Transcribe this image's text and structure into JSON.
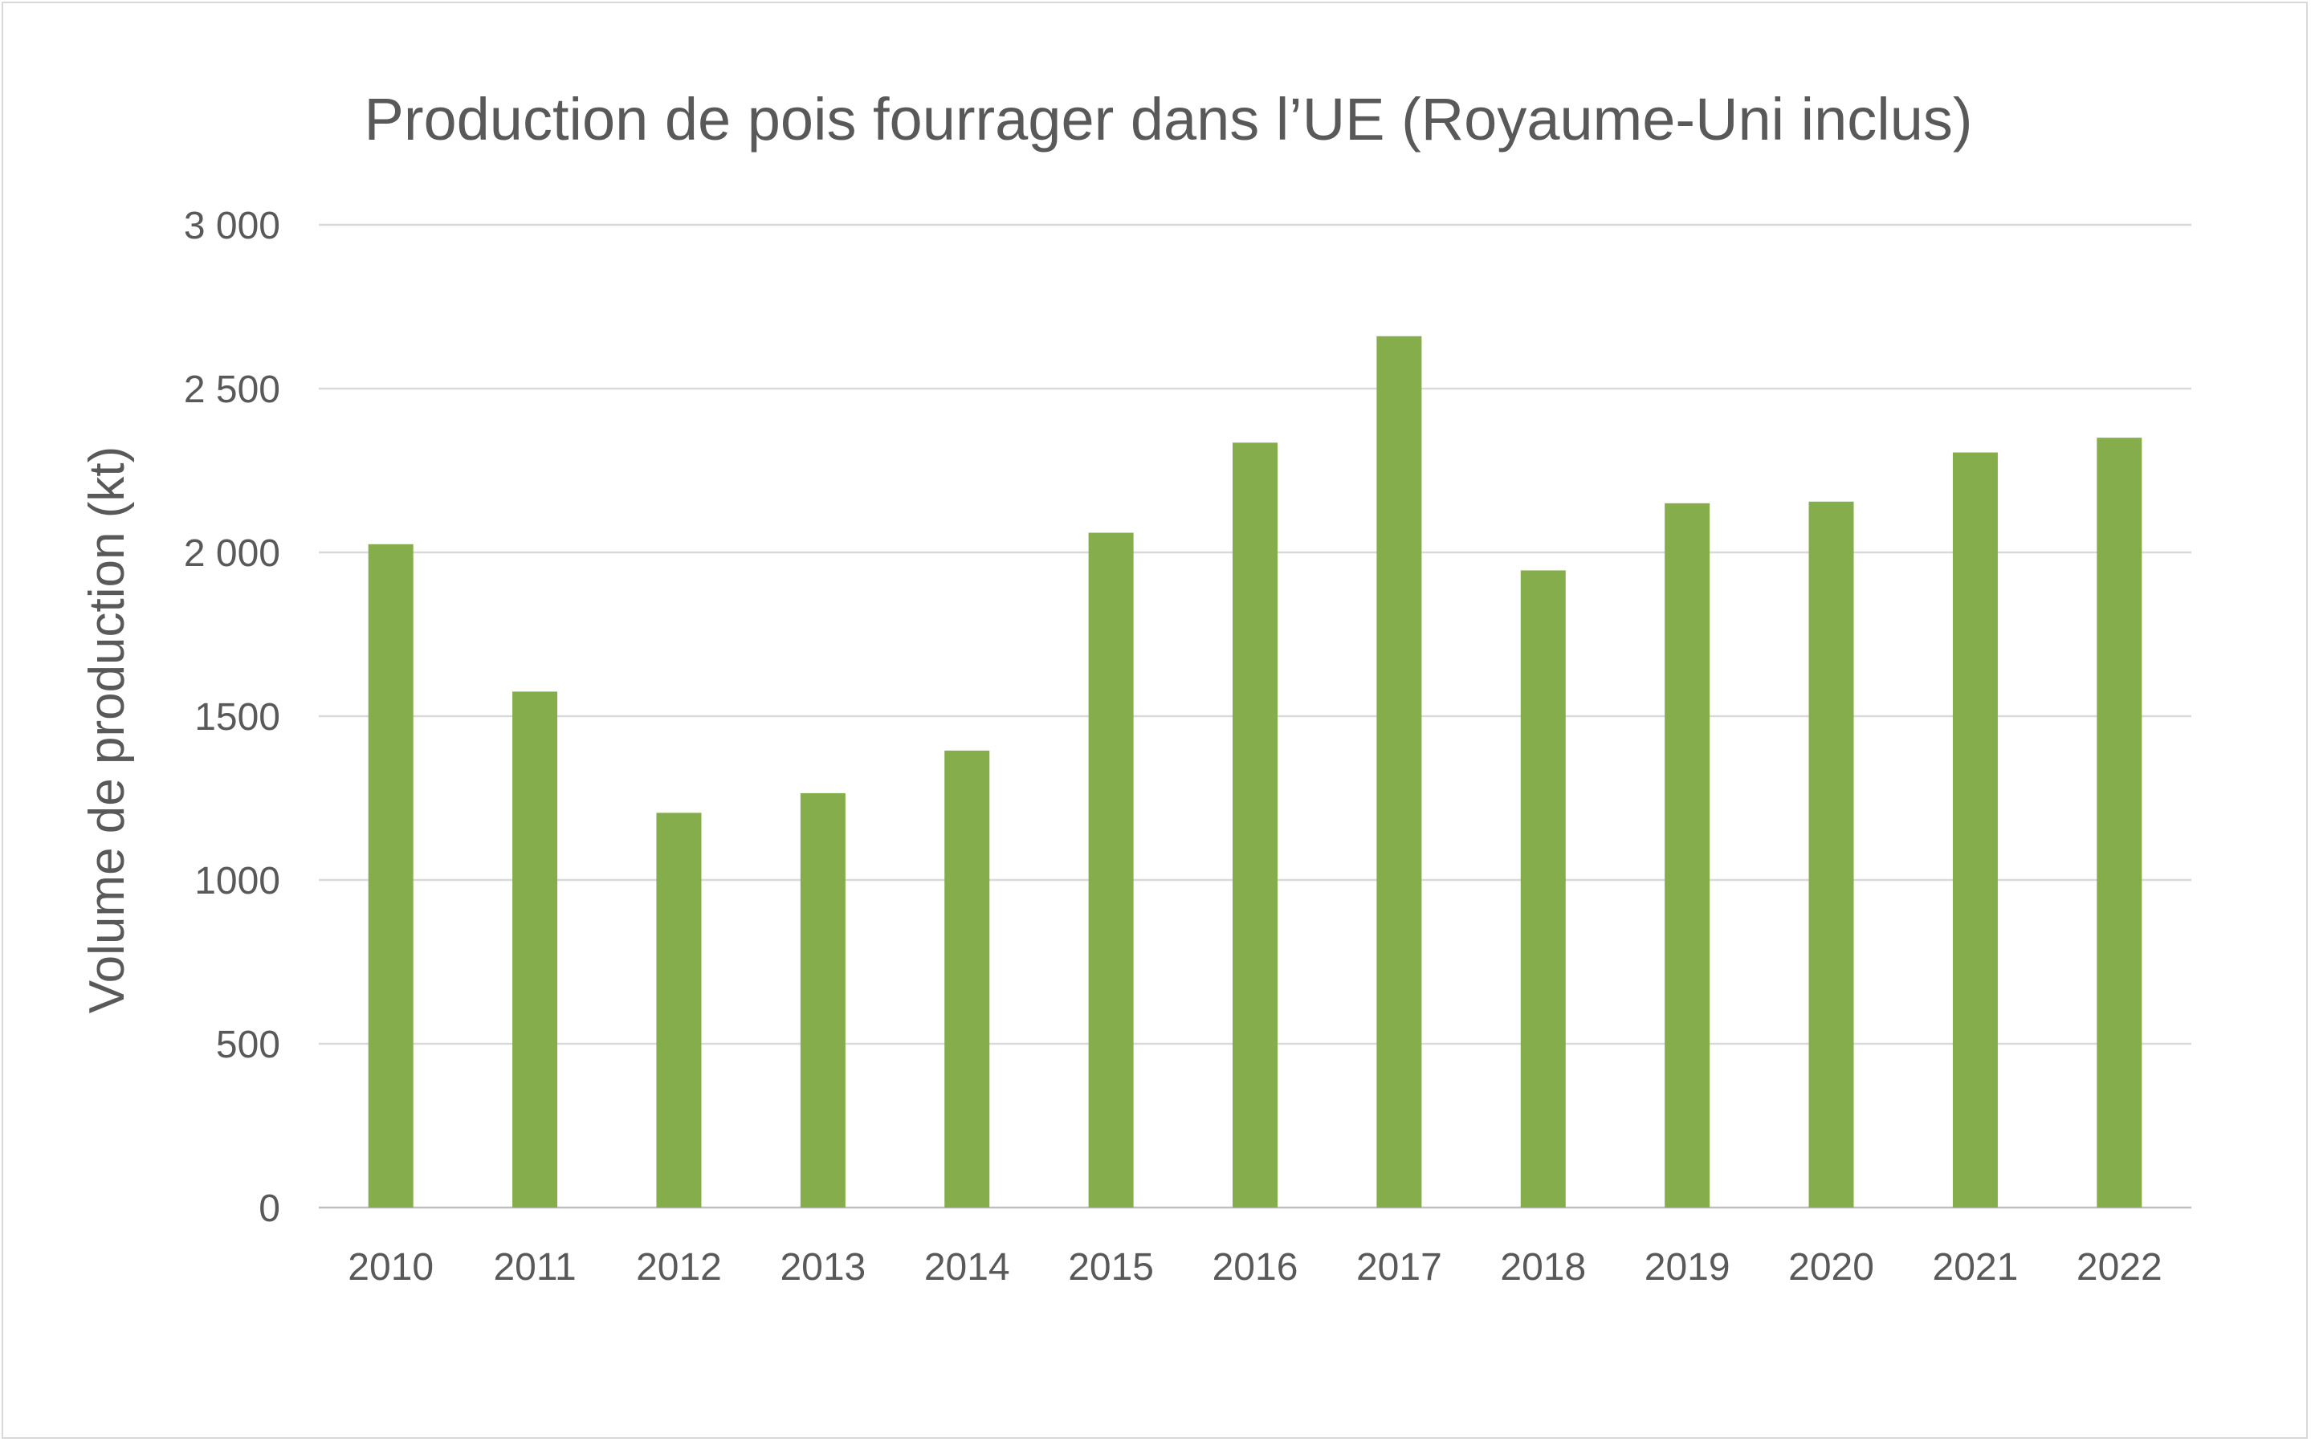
{
  "chart_data": {
    "type": "bar",
    "title": "Production de pois fourrager dans l’UE (Royaume-Uni inclus)",
    "xlabel": "",
    "ylabel": "Volume de production (kt)",
    "categories": [
      "2010",
      "2011",
      "2012",
      "2013",
      "2014",
      "2015",
      "2016",
      "2017",
      "2018",
      "2019",
      "2020",
      "2021",
      "2022"
    ],
    "values": [
      2025,
      1575,
      1205,
      1265,
      1395,
      2060,
      2335,
      2660,
      1945,
      2150,
      2155,
      2305,
      2350
    ],
    "ylim": [
      0,
      3000
    ],
    "yticks": [
      0,
      500,
      1000,
      1500,
      2000,
      2500,
      3000
    ],
    "ytick_labels": [
      "0",
      "500",
      "1000",
      "1500",
      "2 000",
      "2 500",
      "3 000"
    ],
    "grid": true,
    "legend": "none",
    "bar_color": "#86ad4b"
  }
}
